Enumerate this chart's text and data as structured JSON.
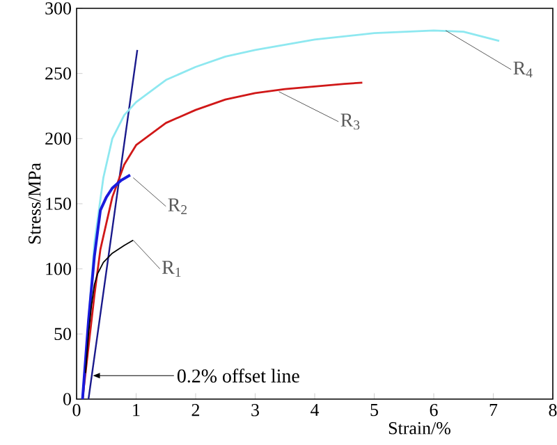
{
  "chart_data": {
    "type": "line",
    "xlabel": "Strain/%",
    "ylabel": "Stress/MPa",
    "xlim": [
      0,
      8
    ],
    "ylim": [
      0,
      300
    ],
    "xticks": [
      0,
      1,
      2,
      3,
      4,
      5,
      6,
      7,
      8
    ],
    "yticks": [
      0,
      50,
      100,
      150,
      200,
      250,
      300
    ],
    "grid": false,
    "marker": "none",
    "line_style": "solid",
    "series": [
      {
        "color": "#000000",
        "x": [
          0.15,
          0.2,
          0.25,
          0.3,
          0.35,
          0.45,
          0.6,
          0.8,
          0.95
        ],
        "values": [
          20,
          50,
          72,
          88,
          96,
          105,
          112,
          118,
          122
        ]
      },
      {
        "color": "#1a1adc",
        "x": [
          0.1,
          0.2,
          0.3,
          0.4,
          0.5,
          0.6,
          0.75,
          0.9
        ],
        "values": [
          0,
          60,
          110,
          145,
          155,
          162,
          168,
          172
        ]
      },
      {
        "color": "#d01818",
        "x": [
          0.1,
          0.2,
          0.3,
          0.4,
          0.6,
          0.8,
          1.0,
          1.5,
          2,
          2.5,
          3,
          3.5,
          4,
          4.5,
          4.8
        ],
        "values": [
          0,
          40,
          80,
          115,
          155,
          180,
          195,
          212,
          222,
          230,
          235,
          238,
          240,
          242,
          243
        ]
      },
      {
        "color": "#8ee8f0",
        "x": [
          0.1,
          0.2,
          0.3,
          0.45,
          0.6,
          0.8,
          1,
          1.5,
          2,
          2.5,
          3,
          4,
          5,
          6,
          6.5,
          7.1
        ],
        "values": [
          0,
          60,
          120,
          170,
          200,
          218,
          228,
          245,
          255,
          263,
          268,
          276,
          281,
          283,
          282,
          275
        ]
      },
      {
        "color": "#1a1a8c",
        "x": [
          0.2,
          1.02
        ],
        "values": [
          0,
          268
        ]
      }
    ],
    "annotations": [
      {
        "text": "R$_{1}$",
        "x": 0.95,
        "y": 122
      },
      {
        "text": "R$_{2}$",
        "x": 0.95,
        "y": 170
      },
      {
        "text": "R$_{3}$",
        "x": 3.4,
        "y": 236
      },
      {
        "text": "R$_{4}$",
        "x": 6.2,
        "y": 283
      },
      "0.2% offset line"
    ]
  }
}
